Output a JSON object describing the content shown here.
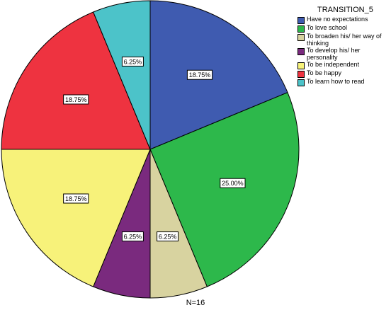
{
  "chart_data": {
    "type": "pie",
    "legend_title": "TRANSITION_5",
    "legend_position": "top-right",
    "footer": "N=16",
    "slices": [
      {
        "label": "Have no expectations",
        "value": 18.75,
        "display": "18.75%",
        "color": "#3f5bb0"
      },
      {
        "label": "To love school",
        "value": 25.0,
        "display": "25.00%",
        "color": "#2db84b"
      },
      {
        "label": "To broaden his/ her way of thinking",
        "value": 6.25,
        "display": "6.25%",
        "color": "#d8d3a0"
      },
      {
        "label": "To develop his/ her personality",
        "value": 6.25,
        "display": "6.25%",
        "color": "#7a2a7e"
      },
      {
        "label": "To be independent",
        "value": 18.75,
        "display": "18.75%",
        "color": "#f7f27a"
      },
      {
        "label": "To be happy",
        "value": 18.75,
        "display": "18.75%",
        "color": "#ee3340"
      },
      {
        "label": "To learn how to read",
        "value": 6.25,
        "display": "6.25%",
        "color": "#4cc3c9"
      }
    ]
  }
}
